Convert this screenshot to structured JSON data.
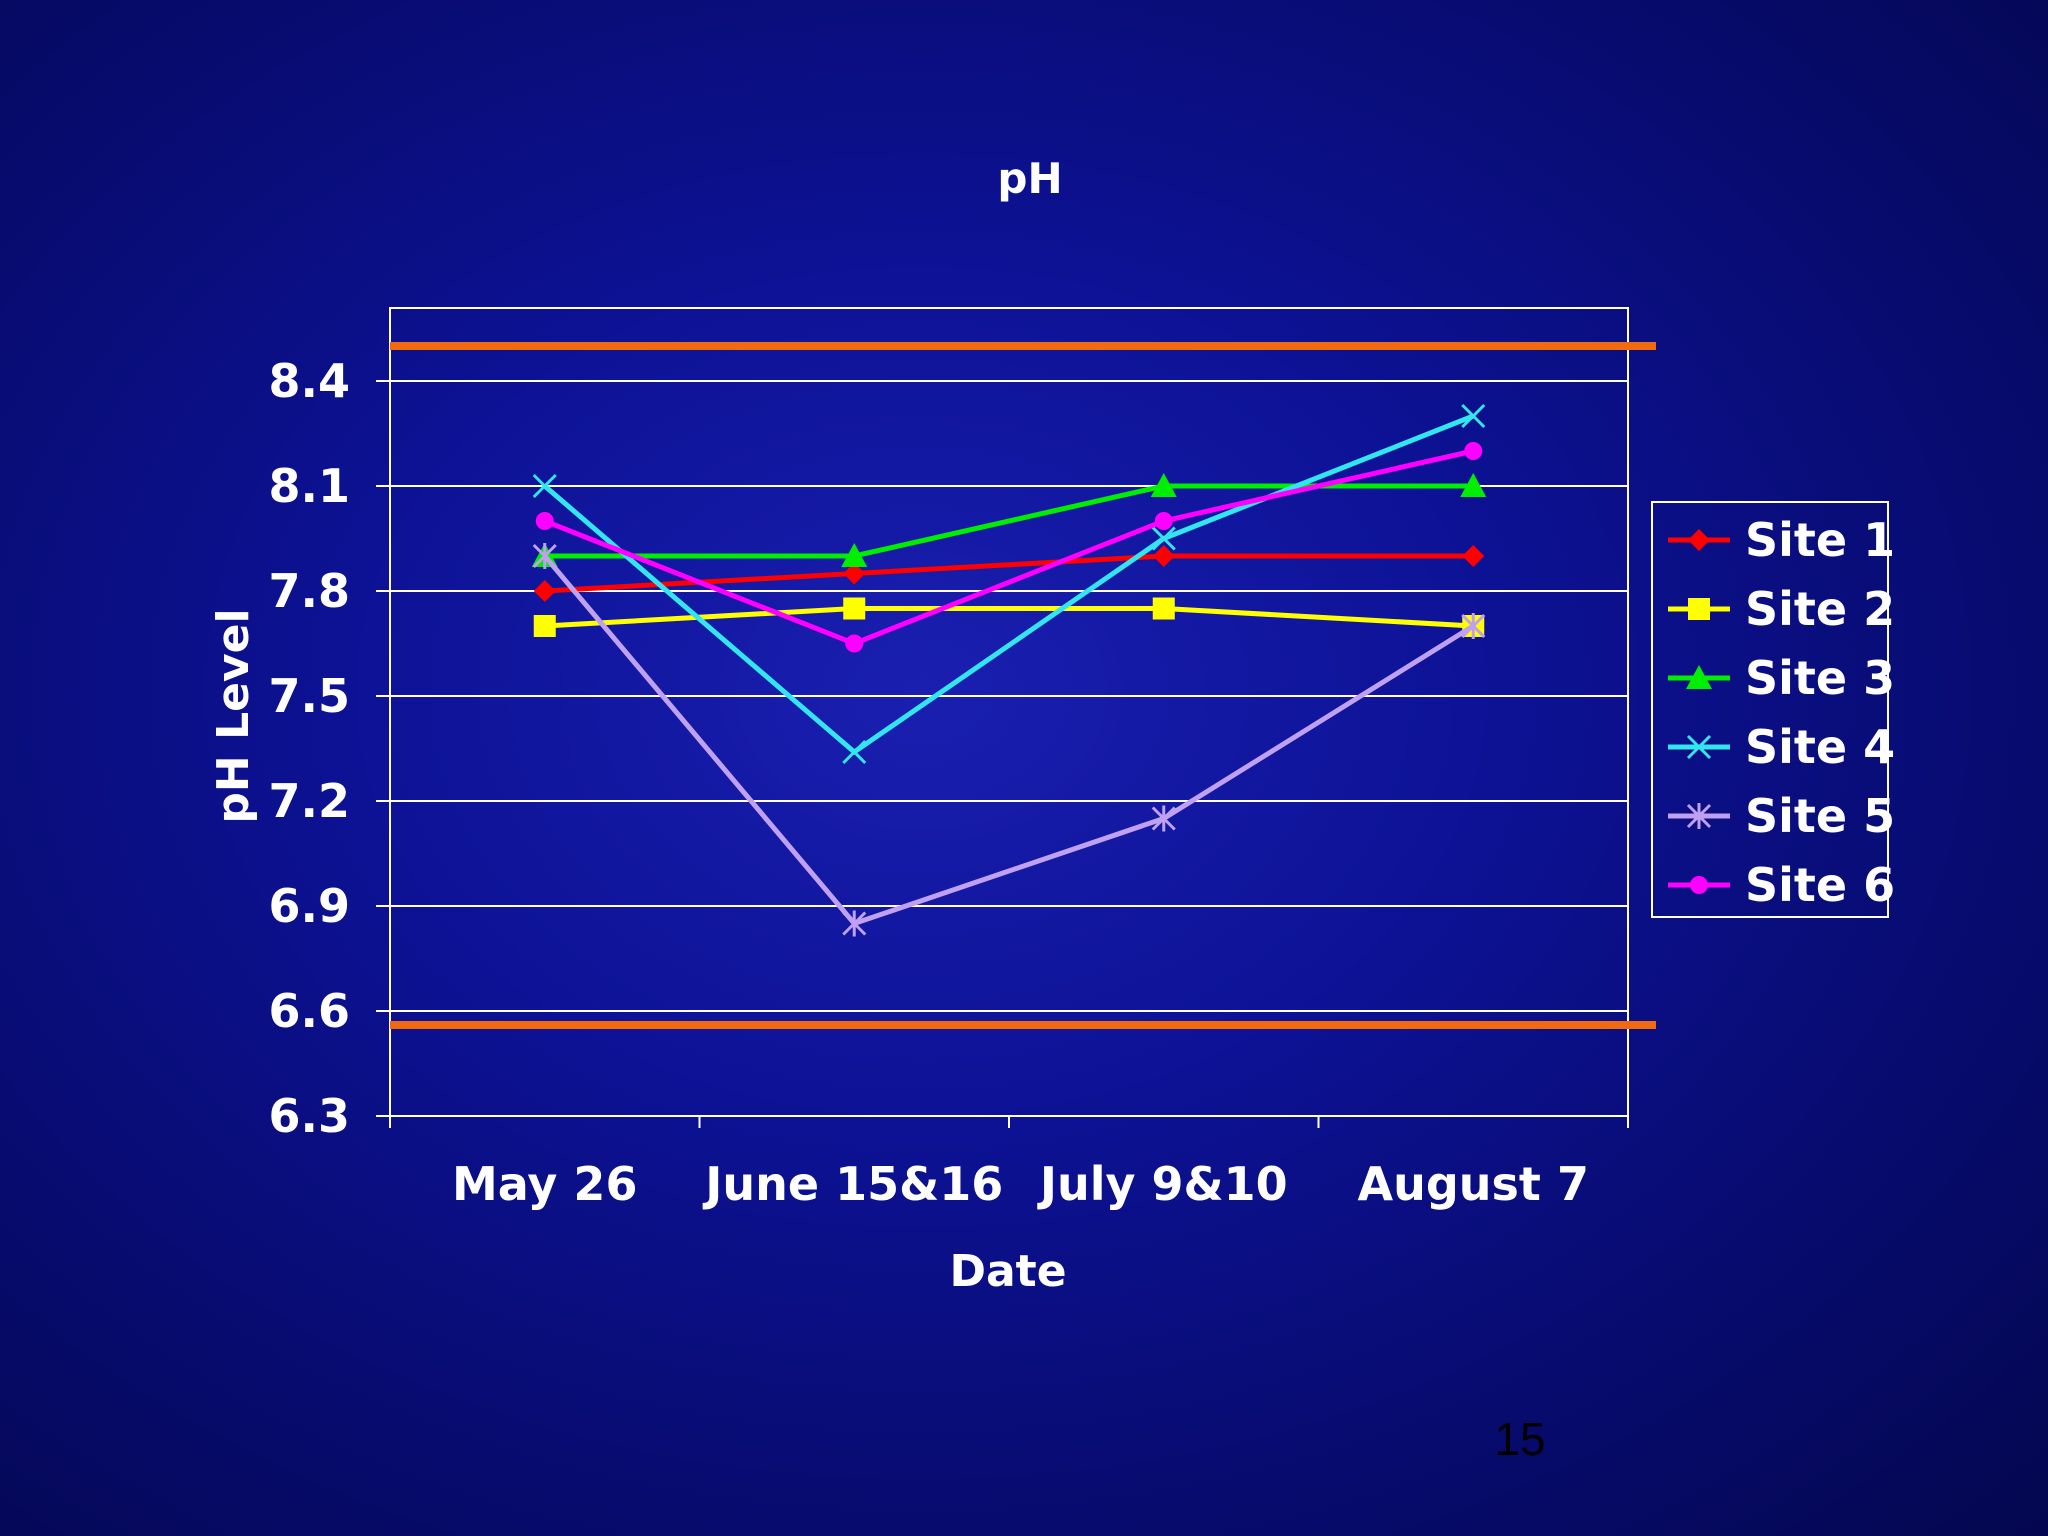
{
  "slide": {
    "page_number": "15"
  },
  "chart_data": {
    "type": "line",
    "title": "pH",
    "xlabel": "Date",
    "ylabel": "pH Level",
    "categories": [
      "May 26",
      "June 15&16",
      "July 9&10",
      "August 7"
    ],
    "ylim": [
      6.3,
      8.6
    ],
    "yticks": [
      "6.3",
      "6.6",
      "6.9",
      "7.2",
      "7.5",
      "7.8",
      "8.1",
      "8.4"
    ],
    "grid": true,
    "legend_position": "right",
    "reference_lines": [
      {
        "value": 8.5,
        "color": "#f26a10"
      },
      {
        "value": 6.56,
        "color": "#f26a10"
      }
    ],
    "series": [
      {
        "name": "Site 1",
        "color": "#ff0000",
        "marker": "diamond",
        "values": [
          7.8,
          7.85,
          7.9,
          7.9
        ]
      },
      {
        "name": "Site 2",
        "color": "#ffff00",
        "marker": "square",
        "values": [
          7.7,
          7.75,
          7.75,
          7.7
        ]
      },
      {
        "name": "Site 3",
        "color": "#00ee00",
        "marker": "triangle",
        "values": [
          7.9,
          7.9,
          8.1,
          8.1
        ]
      },
      {
        "name": "Site 4",
        "color": "#33e5ee",
        "marker": "x",
        "values": [
          8.1,
          7.34,
          7.95,
          8.3
        ]
      },
      {
        "name": "Site 5",
        "color": "#c0a0f0",
        "marker": "star",
        "values": [
          7.9,
          6.85,
          7.15,
          7.7
        ]
      },
      {
        "name": "Site 6",
        "color": "#ff00ff",
        "marker": "circle",
        "values": [
          8.0,
          7.65,
          8.0,
          8.2
        ]
      }
    ]
  }
}
